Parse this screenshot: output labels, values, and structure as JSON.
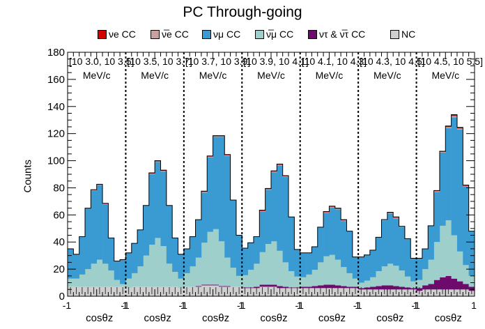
{
  "chart_data": {
    "type": "bar",
    "title": "PC  Through-going",
    "ylabel": "Counts",
    "xlabel": "cosθz",
    "ylim": [
      0,
      180
    ],
    "y_ticks": [
      0,
      20,
      40,
      60,
      80,
      100,
      120,
      140,
      160,
      180
    ],
    "x_per_panel_ticks": [
      "-1",
      "1"
    ],
    "panels": [
      {
        "label": "[10^{3.0}, 10^{3.5}] MeV/c",
        "label_lines": [
          "[10 3.0, 10 3.5]",
          "MeV/c"
        ]
      },
      {
        "label": "[10^{3.5}, 10^{3.7}] MeV/c",
        "label_lines": [
          "[10 3.5, 10 3.7]",
          "MeV/c"
        ]
      },
      {
        "label": "[10^{3.7}, 10^{3.9}] MeV/c",
        "label_lines": [
          "[10 3.7, 10 3.9]",
          "MeV/c"
        ]
      },
      {
        "label": "[10^{3.9}, 10^{4.1}] MeV/c",
        "label_lines": [
          "[10 3.9, 10 4.1]",
          "MeV/c"
        ]
      },
      {
        "label": "[10^{4.1}, 10^{4.3}] MeV/c",
        "label_lines": [
          "[10 4.1, 10 4.3]",
          "MeV/c"
        ]
      },
      {
        "label": "[10^{4.3}, 10^{4.5}] MeV/c",
        "label_lines": [
          "[10 4.3, 10 4.5]",
          "MeV/c"
        ]
      },
      {
        "label": "[10^{4.5}, 10^{5.5}] MeV/c",
        "label_lines": [
          "[10 4.5, 10 5.5]",
          "MeV/c"
        ]
      }
    ],
    "bins_per_panel": 10,
    "legend": [
      "νe CC",
      "ν̅e CC",
      "νμ CC",
      "ν̅μ CC",
      "ντ & ν̅τ CC",
      "NC"
    ],
    "colors": {
      "nue": "#d40000",
      "nuebar": "#c9a09f",
      "numu": "#3a9bd2",
      "numubar": "#9fcfcb",
      "nutau": "#6e0a6e",
      "nc": "#cfcfcf"
    },
    "series": [
      {
        "name": "NC",
        "key": "nc",
        "values": [
          7,
          7,
          7,
          7,
          7,
          7,
          7,
          7,
          7,
          7,
          6,
          7,
          7,
          7,
          7,
          7,
          7,
          7,
          7,
          6,
          7,
          7,
          7,
          8,
          8,
          8,
          7,
          7,
          7,
          7,
          6,
          6,
          6,
          7,
          7,
          7,
          6,
          6,
          6,
          6,
          6,
          6,
          6,
          6,
          6,
          6,
          6,
          6,
          6,
          6,
          5,
          5,
          5,
          5,
          5,
          5,
          5,
          5,
          5,
          5,
          4,
          5,
          5,
          5,
          5,
          5,
          5,
          5,
          5,
          4
        ]
      },
      {
        "name": "ντ & ν̅τ CC",
        "key": "nutau",
        "values": [
          0,
          0,
          0,
          0,
          0,
          0,
          0,
          0,
          0,
          0,
          0,
          0,
          0,
          0,
          0,
          0,
          0,
          0,
          0,
          0,
          0,
          0,
          0.5,
          0.5,
          0.5,
          0.5,
          0.5,
          0.5,
          0,
          0,
          0.5,
          0.5,
          1,
          1.5,
          1.5,
          1.5,
          1.5,
          1,
          0.5,
          0.5,
          1,
          1,
          1.5,
          2,
          2.5,
          2.5,
          2,
          1.5,
          1,
          1,
          1,
          1.5,
          2,
          2.5,
          3,
          3,
          2.5,
          2,
          1.5,
          1,
          2,
          3,
          4,
          7,
          9,
          10,
          8,
          6,
          4,
          3
        ]
      },
      {
        "name": "ν̅μ CC",
        "key": "numubar",
        "values": [
          6,
          6,
          9,
          13,
          17,
          20,
          17,
          12,
          5,
          2,
          7,
          10,
          15,
          23,
          31,
          36,
          30,
          17,
          11,
          7,
          10,
          15,
          21,
          31,
          39,
          41,
          33,
          21,
          14,
          8,
          9,
          13,
          17,
          24,
          30,
          32,
          26,
          18,
          12,
          8,
          7,
          9,
          12,
          17,
          21,
          22,
          19,
          14,
          10,
          6,
          4,
          5,
          7,
          11,
          14,
          16,
          15,
          12,
          8,
          5,
          6,
          12,
          18,
          28,
          38,
          41,
          32,
          22,
          14,
          8
        ]
      },
      {
        "name": "νμ CC",
        "key": "numu",
        "values": [
          22,
          18,
          28,
          45,
          54,
          55,
          44,
          24,
          14,
          18,
          19,
          22,
          27,
          37,
          52,
          56,
          55,
          43,
          25,
          18,
          18,
          22,
          28,
          37,
          55,
          68,
          77,
          75,
          50,
          30,
          20,
          20,
          20,
          30,
          40,
          51,
          63,
          63,
          40,
          20,
          18,
          16,
          17,
          26,
          32,
          35,
          37,
          34,
          31,
          16,
          19,
          19,
          20,
          25,
          34,
          37,
          35,
          32,
          28,
          17,
          16,
          15,
          25,
          37,
          54,
          68,
          87,
          90,
          58,
          33
        ]
      },
      {
        "name": "ν̅e CC",
        "key": "nuebar",
        "values": [
          0,
          0,
          0,
          0,
          0.3,
          0.3,
          0.3,
          0,
          0,
          0,
          0,
          0,
          0,
          0,
          0.5,
          0.5,
          0.5,
          0,
          0,
          0,
          0,
          0,
          0,
          0.5,
          0.5,
          0.5,
          0.5,
          0.5,
          0,
          0,
          0,
          0,
          0,
          0.5,
          0.5,
          0.5,
          0.5,
          0.5,
          0,
          0,
          0,
          0,
          0,
          0,
          0.5,
          0.5,
          0.5,
          0.5,
          0,
          0,
          0,
          0,
          0,
          0,
          0.3,
          0.5,
          0.5,
          0.3,
          0,
          0,
          0,
          0,
          0,
          0.5,
          0.5,
          0.8,
          1,
          0.8,
          0.5,
          0
        ]
      },
      {
        "name": "νe CC",
        "key": "nue",
        "values": [
          0,
          0,
          0,
          0,
          0.3,
          0.3,
          0.3,
          0,
          0,
          0,
          0,
          0,
          0,
          0,
          0.5,
          0.5,
          0.5,
          0,
          0,
          0,
          0,
          0,
          0,
          0.5,
          0.5,
          0.5,
          0.5,
          0.5,
          0,
          0,
          0,
          0,
          0,
          0.5,
          0.5,
          0.5,
          0.5,
          0.5,
          0,
          0,
          0,
          0,
          0,
          0,
          0.5,
          0.5,
          0.5,
          0.5,
          0,
          0,
          0,
          0,
          0,
          0,
          0.3,
          0.5,
          0.5,
          0.3,
          0,
          0,
          0,
          0,
          0,
          0.5,
          0.5,
          0.8,
          1,
          0.8,
          0.5,
          0
        ]
      }
    ]
  }
}
